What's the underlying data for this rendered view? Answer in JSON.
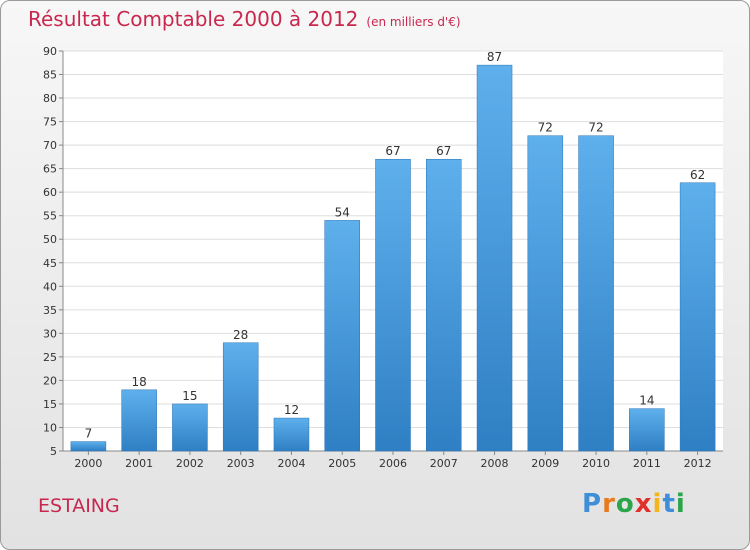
{
  "chart_data": {
    "type": "bar",
    "title": "Résultat Comptable 2000 à 2012",
    "subtitle": "(en milliers d'€)",
    "categories": [
      "2000",
      "2001",
      "2002",
      "2003",
      "2004",
      "2005",
      "2006",
      "2007",
      "2008",
      "2009",
      "2010",
      "2011",
      "2012"
    ],
    "values": [
      7,
      18,
      15,
      28,
      12,
      54,
      67,
      67,
      87,
      72,
      72,
      14,
      62
    ],
    "ylim": [
      5,
      90
    ],
    "yticks": [
      5,
      10,
      15,
      20,
      25,
      30,
      35,
      40,
      45,
      50,
      55,
      60,
      65,
      70,
      75,
      80,
      85,
      90
    ],
    "xlabel": "",
    "ylabel": "",
    "grid": true,
    "bar_color": "#4b9ee0"
  },
  "place": "ESTAING",
  "brand": {
    "letters": [
      "P",
      "r",
      "o",
      "x",
      "i",
      "t",
      "i"
    ]
  },
  "colors": {
    "title": "#c8284e",
    "brand": [
      "#3f8fd8",
      "#e87b1e",
      "#2aa54a",
      "#e0302a",
      "#f2b51c",
      "#3f8fd8",
      "#2aa54a"
    ]
  }
}
